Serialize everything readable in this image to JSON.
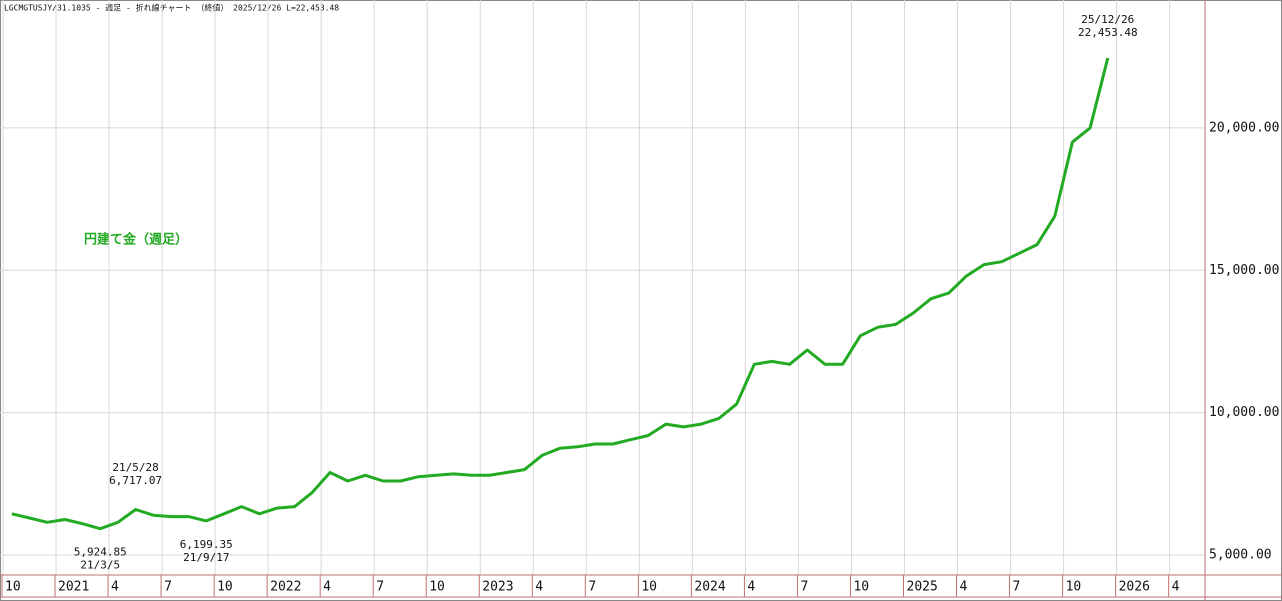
{
  "chart_data": {
    "type": "line",
    "title": "LGCMGTUSJY/31.1035 - 週足 - 折れ線チャート （終値） 2025/12/26 L=22,453.48",
    "x": [
      "2020-10",
      "2020-11",
      "2020-12",
      "2021-01",
      "2021-02",
      "2021-03",
      "2021-04",
      "2021-05",
      "2021-06",
      "2021-07",
      "2021-08",
      "2021-09",
      "2021-10",
      "2021-11",
      "2021-12",
      "2022-01",
      "2022-02",
      "2022-03",
      "2022-04",
      "2022-05",
      "2022-06",
      "2022-07",
      "2022-08",
      "2022-09",
      "2022-10",
      "2022-11",
      "2022-12",
      "2023-01",
      "2023-02",
      "2023-03",
      "2023-04",
      "2023-05",
      "2023-06",
      "2023-07",
      "2023-08",
      "2023-09",
      "2023-10",
      "2023-11",
      "2023-12",
      "2024-01",
      "2024-02",
      "2024-03",
      "2024-04",
      "2024-05",
      "2024-06",
      "2024-07",
      "2024-08",
      "2024-09",
      "2024-10",
      "2024-11",
      "2024-12",
      "2025-01",
      "2025-02",
      "2025-03",
      "2025-04",
      "2025-05",
      "2025-06",
      "2025-07",
      "2025-08",
      "2025-09",
      "2025-10",
      "2025-11",
      "2025-12"
    ],
    "series": [
      {
        "name": "円建て金（週足）",
        "color": "#22aa22",
        "values": [
          6450,
          6300,
          6150,
          6250,
          6100,
          5925,
          6150,
          6600,
          6400,
          6350,
          6350,
          6200,
          6450,
          6700,
          6450,
          6650,
          6700,
          7200,
          7900,
          7600,
          7800,
          7600,
          7600,
          7750,
          7800,
          7850,
          7800,
          7800,
          7900,
          8000,
          8500,
          8750,
          8800,
          8900,
          8900,
          9050,
          9200,
          9600,
          9500,
          9600,
          9800,
          10300,
          11700,
          11800,
          11700,
          12200,
          11700,
          11700,
          12700,
          13000,
          13100,
          13500,
          14000,
          14200,
          14800,
          15200,
          15300,
          15600,
          15900,
          16900,
          19500,
          20000,
          22453.48
        ]
      }
    ],
    "annotations": [
      {
        "text": "21/3/5",
        "x": "2021-03",
        "value": 5924.85,
        "value_label": "5,924.85",
        "position": "below"
      },
      {
        "text": "21/5/28",
        "x": "2021-05",
        "value": 6717.07,
        "value_label": "6,717.07",
        "position": "above"
      },
      {
        "text": "21/9/17",
        "x": "2021-09",
        "value": 6199.35,
        "value_label": "6,199.35",
        "position": "below"
      },
      {
        "text": "25/12/26",
        "x": "2025-12",
        "value": 22453.48,
        "value_label": "22,453.48",
        "position": "above"
      }
    ],
    "xlim": [
      "2020-10",
      "2026-06"
    ],
    "xticks": [
      {
        "value": "2020-10",
        "label": "10"
      },
      {
        "value": "2021-01",
        "label": "2021"
      },
      {
        "value": "2021-04",
        "label": "4"
      },
      {
        "value": "2021-07",
        "label": "7"
      },
      {
        "value": "2021-10",
        "label": "10"
      },
      {
        "value": "2022-01",
        "label": "2022"
      },
      {
        "value": "2022-04",
        "label": "4"
      },
      {
        "value": "2022-07",
        "label": "7"
      },
      {
        "value": "2022-10",
        "label": "10"
      },
      {
        "value": "2023-01",
        "label": "2023"
      },
      {
        "value": "2023-04",
        "label": "4"
      },
      {
        "value": "2023-07",
        "label": "7"
      },
      {
        "value": "2023-10",
        "label": "10"
      },
      {
        "value": "2024-01",
        "label": "2024"
      },
      {
        "value": "2024-04",
        "label": "4"
      },
      {
        "value": "2024-07",
        "label": "7"
      },
      {
        "value": "2024-10",
        "label": "10"
      },
      {
        "value": "2025-01",
        "label": "2025"
      },
      {
        "value": "2025-04",
        "label": "4"
      },
      {
        "value": "2025-07",
        "label": "7"
      },
      {
        "value": "2025-10",
        "label": "10"
      },
      {
        "value": "2026-01",
        "label": "2026"
      },
      {
        "value": "2026-04",
        "label": "4"
      }
    ],
    "ylim": [
      4300,
      24490
    ],
    "yticks": [
      {
        "value": 5000,
        "label": "5,000.00"
      },
      {
        "value": 10000,
        "label": "10,000.00"
      },
      {
        "value": 15000,
        "label": "15,000.00"
      },
      {
        "value": 20000,
        "label": "20,000.00"
      }
    ],
    "grid": true
  }
}
